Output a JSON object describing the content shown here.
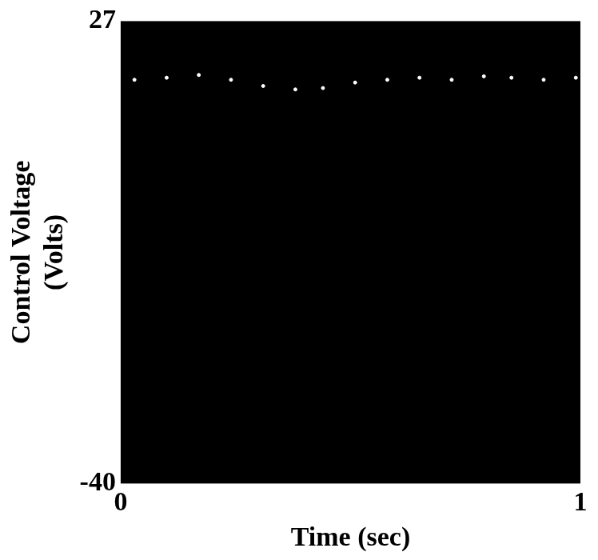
{
  "chart_data": {
    "type": "scatter",
    "x_label": "Time (sec)",
    "y_label": "Control Voltage (Volts)",
    "x": [
      0.03,
      0.1,
      0.17,
      0.24,
      0.31,
      0.38,
      0.44,
      0.51,
      0.58,
      0.65,
      0.72,
      0.79,
      0.85,
      0.92,
      0.99
    ],
    "values": [
      18.5,
      18.8,
      19.2,
      18.5,
      17.6,
      17.1,
      17.3,
      18.1,
      18.5,
      18.8,
      18.5,
      19.0,
      18.8,
      18.5,
      18.8
    ],
    "color": "#ffffff",
    "marker": "dot",
    "xlim": [
      0,
      1
    ],
    "xticks": [
      0,
      1
    ],
    "ylim": [
      -40,
      27
    ],
    "yticks": [
      -40,
      27
    ],
    "grid": false
  }
}
